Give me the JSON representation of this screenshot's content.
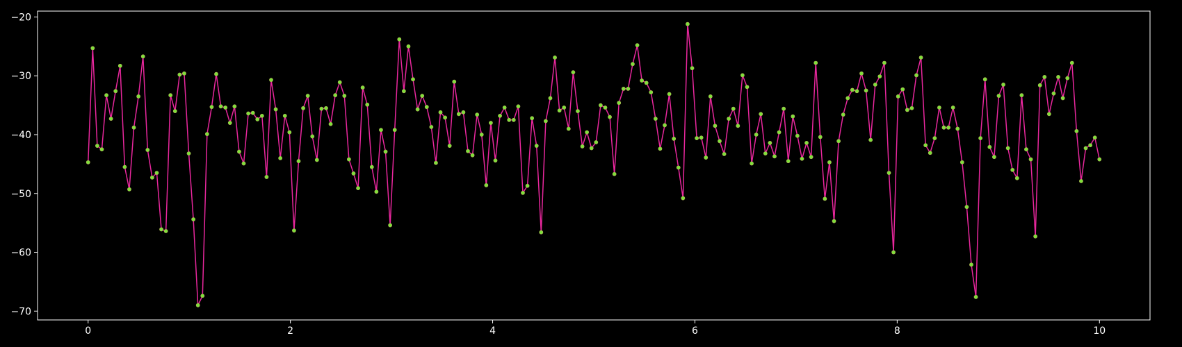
{
  "colors": {
    "background": "#000000",
    "axes": "#ffffff",
    "line": "#e8279d",
    "marker": "#7ee23a"
  },
  "chart_data": {
    "type": "line",
    "title": "",
    "xlabel": "",
    "ylabel": "",
    "xlim": [
      -0.5,
      10.5
    ],
    "ylim": [
      -71.5,
      -19
    ],
    "xticks": [
      0,
      2,
      4,
      6,
      8,
      10
    ],
    "yticks": [
      -70,
      -60,
      -50,
      -40,
      -30,
      -20
    ],
    "grid": false,
    "legend": "none",
    "series": [
      {
        "x_start": 0,
        "x_end": 10,
        "values": [
          -44.7,
          -25.3,
          -41.9,
          -42.5,
          -33.3,
          -37.3,
          -32.6,
          -28.3,
          -45.5,
          -49.3,
          -38.8,
          -33.5,
          -26.7,
          -42.6,
          -47.3,
          -46.5,
          -56.1,
          -56.4,
          -33.3,
          -36.0,
          -29.8,
          -29.6,
          -43.2,
          -54.4,
          -69.0,
          -67.4,
          -39.9,
          -35.3,
          -29.7,
          -35.2,
          -35.4,
          -38.0,
          -35.2,
          -42.9,
          -44.9,
          -36.4,
          -36.3,
          -37.4,
          -36.8,
          -47.2,
          -30.7,
          -35.7,
          -44.0,
          -36.8,
          -39.6,
          -56.3,
          -44.5,
          -35.5,
          -33.4,
          -40.3,
          -44.3,
          -35.6,
          -35.5,
          -38.2,
          -33.3,
          -31.1,
          -33.4,
          -44.2,
          -46.6,
          -49.1,
          -32.0,
          -34.9,
          -45.5,
          -49.7,
          -39.2,
          -42.9,
          -55.4,
          -39.2,
          -23.8,
          -32.6,
          -25.0,
          -30.6,
          -35.7,
          -33.4,
          -35.3,
          -38.7,
          -44.8,
          -36.2,
          -37.1,
          -41.9,
          -31.0,
          -36.5,
          -36.2,
          -42.8,
          -43.5,
          -36.6,
          -40.0,
          -48.6,
          -38.0,
          -44.4,
          -36.8,
          -35.4,
          -37.5,
          -37.5,
          -35.2,
          -49.9,
          -48.7,
          -37.2,
          -41.9,
          -56.6,
          -37.7,
          -33.8,
          -26.9,
          -35.9,
          -35.4,
          -39.0,
          -29.4,
          -36.0,
          -42.0,
          -39.6,
          -42.3,
          -41.3,
          -35.0,
          -35.4,
          -37.0,
          -46.7,
          -34.6,
          -32.2,
          -32.2,
          -28.0,
          -24.8,
          -30.8,
          -31.2,
          -32.8,
          -37.3,
          -42.4,
          -38.4,
          -33.1,
          -40.7,
          -45.6,
          -50.8,
          -21.2,
          -28.7,
          -40.6,
          -40.5,
          -43.9,
          -33.5,
          -38.5,
          -41.1,
          -43.3,
          -37.3,
          -35.6,
          -38.5,
          -29.9,
          -31.9,
          -44.9,
          -40.0,
          -36.5,
          -43.2,
          -41.4,
          -43.7,
          -39.6,
          -35.6,
          -44.5,
          -36.9,
          -40.2,
          -44.1,
          -41.4,
          -43.8,
          -27.8,
          -40.4,
          -50.9,
          -44.7,
          -54.7,
          -41.1,
          -36.6,
          -33.8,
          -32.4,
          -32.6,
          -29.6,
          -32.5,
          -40.9,
          -31.5,
          -30.1,
          -27.8,
          -46.5,
          -60.0,
          -33.5,
          -32.3,
          -35.8,
          -35.5,
          -29.9,
          -26.9,
          -41.8,
          -43.1,
          -40.6,
          -35.4,
          -38.8,
          -38.8,
          -35.4,
          -39.0,
          -44.7,
          -52.3,
          -62.1,
          -67.6,
          -40.6,
          -30.6,
          -42.1,
          -43.8,
          -33.4,
          -31.5,
          -42.3,
          -46.0,
          -47.4,
          -33.3,
          -42.5,
          -44.2,
          -57.3,
          -31.6,
          -30.2,
          -36.5,
          -33.0,
          -30.2,
          -33.8,
          -30.4,
          -27.8,
          -39.4,
          -47.9,
          -42.3,
          -41.8,
          -40.5,
          -44.2
        ]
      }
    ]
  }
}
